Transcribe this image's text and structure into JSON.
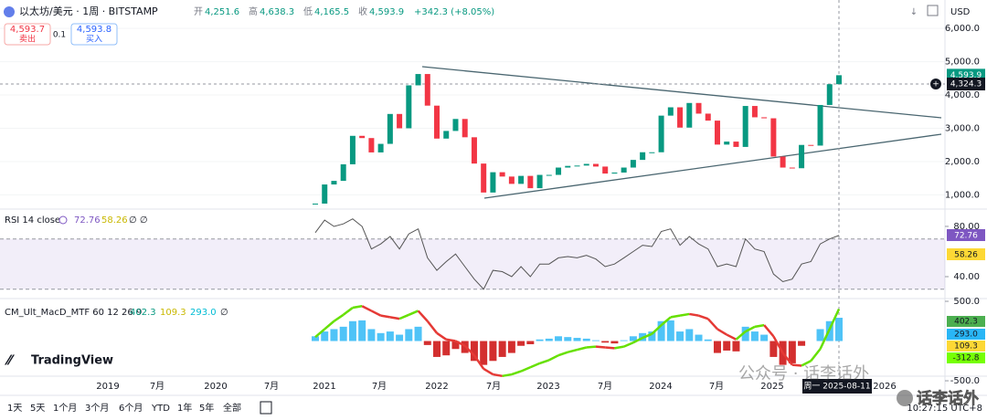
{
  "header": {
    "symbol": "以太坊/美元 · 1周 · BITSTAMP",
    "ohlc": [
      {
        "label": "开",
        "value": "4,251.6"
      },
      {
        "label": "高",
        "value": "4,638.3"
      },
      {
        "label": "低",
        "value": "4,165.5"
      },
      {
        "label": "收",
        "value": "4,593.9"
      }
    ],
    "change": "+342.3 (+8.05%)",
    "currency": "USD"
  },
  "trade": {
    "sell_price": "4,593.7",
    "sell_label": "卖出",
    "qty": "0.1",
    "buy_price": "4,593.8",
    "buy_label": "买入"
  },
  "price": {
    "type": "candlestick",
    "ylim": [
      600,
      6250
    ],
    "yticks": [
      {
        "value": 6000,
        "label": "6,000.0"
      },
      {
        "value": 5000,
        "label": "5,000.0"
      },
      {
        "value": 4000,
        "label": "4,000.0"
      },
      {
        "value": 3000,
        "label": "3,000.0"
      },
      {
        "value": 2000,
        "label": "2,000.0"
      },
      {
        "value": 1000,
        "label": "1,000.0"
      }
    ],
    "closes": [
      737,
      1312,
      1420,
      1918,
      2773,
      2706,
      2275,
      2532,
      3430,
      3000,
      4290,
      4630,
      3680,
      2690,
      2920,
      3280,
      2730,
      1940,
      1070,
      1680,
      1550,
      1330,
      1570,
      1200,
      1600,
      1600,
      1820,
      1870,
      1880,
      1930,
      1850,
      1640,
      1670,
      1820,
      2050,
      2280,
      2280,
      3380,
      3630,
      3020,
      3760,
      3440,
      3230,
      2510,
      2600,
      2440,
      3670,
      3330,
      3300,
      2150,
      1820,
      1800,
      2500,
      2480,
      3700,
      4324,
      4594
    ],
    "last_label": "4,593.9",
    "cursor_label": "4,324.3"
  },
  "rsi": {
    "title": "RSI 14 close",
    "value": "72.76",
    "ma": "58.26",
    "extra": "∅ ∅",
    "ylim": [
      24,
      91.6
    ],
    "yticks": [
      {
        "value": 80,
        "label": "80.00"
      },
      {
        "value": 40,
        "label": "40.00"
      }
    ],
    "band": [
      70,
      30
    ],
    "values": [
      75,
      85,
      80,
      82,
      86,
      80,
      62,
      66,
      72,
      62,
      74,
      78,
      55,
      45,
      52,
      58,
      48,
      38,
      30,
      45,
      44,
      40,
      48,
      40,
      50,
      50,
      55,
      56,
      55,
      57,
      54,
      48,
      50,
      55,
      60,
      65,
      64,
      76,
      78,
      65,
      72,
      66,
      62,
      48,
      50,
      48,
      70,
      62,
      60,
      42,
      36,
      38,
      50,
      52,
      66,
      70,
      72.76
    ]
  },
  "macd": {
    "title": "CM_Ult_MacD_MTF 60 12 26 9",
    "labels": [
      "402.3",
      "109.3",
      "293.0",
      "∅"
    ],
    "axis_labels": [
      "402.3",
      "293.0",
      "109.3",
      "-312.8"
    ],
    "ylim": [
      -511,
      523
    ],
    "yticks": [
      {
        "value": 500,
        "label": "500.0"
      },
      {
        "value": -500,
        "label": "-500.0"
      }
    ],
    "histogram": [
      60,
      120,
      150,
      180,
      250,
      260,
      150,
      100,
      120,
      80,
      150,
      180,
      -50,
      -200,
      -180,
      -100,
      -150,
      -250,
      -300,
      -250,
      -200,
      -150,
      -60,
      -40,
      20,
      30,
      60,
      50,
      40,
      30,
      10,
      -20,
      -30,
      10,
      60,
      100,
      120,
      250,
      260,
      120,
      150,
      80,
      20,
      -150,
      -120,
      -130,
      180,
      120,
      80,
      -200,
      -300,
      -280,
      -60,
      0,
      150,
      250,
      293
    ],
    "line": [
      50,
      150,
      250,
      330,
      420,
      440,
      380,
      320,
      300,
      280,
      330,
      380,
      250,
      100,
      20,
      0,
      -60,
      -180,
      -350,
      -420,
      -440,
      -420,
      -380,
      -330,
      -280,
      -240,
      -180,
      -140,
      -110,
      -80,
      -70,
      -80,
      -90,
      -70,
      -20,
      40,
      90,
      200,
      300,
      320,
      340,
      320,
      280,
      150,
      80,
      20,
      120,
      180,
      200,
      60,
      -150,
      -300,
      -310,
      -250,
      -100,
      150,
      402.3
    ]
  },
  "time_axis": [
    "2019",
    "7月",
    "2020",
    "7月",
    "2021",
    "7月",
    "2022",
    "7月",
    "2023",
    "7月",
    "2024",
    "7月",
    "2025",
    "2026"
  ],
  "cursor_date": "周一 2025-08-11",
  "toolbar": {
    "ranges": [
      "1天",
      "5天",
      "1个月",
      "3个月",
      "6个月",
      "YTD",
      "1年",
      "5年",
      "全部"
    ],
    "clock": "10:27:15 UTC+8"
  },
  "brand": "TradingView",
  "watermark": "公众号 · 话李话外",
  "watermark_badge": "话李话外"
}
